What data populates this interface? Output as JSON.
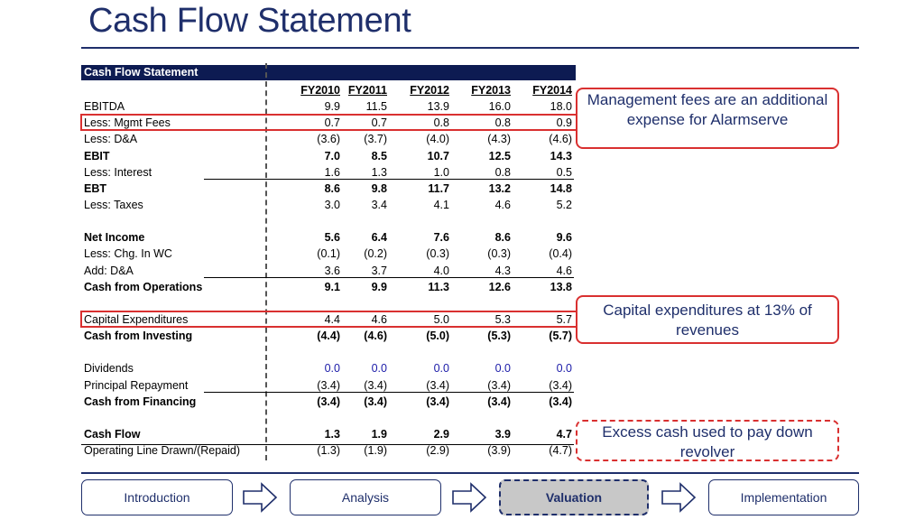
{
  "title": "Cash Flow Statement",
  "table": {
    "header": "Cash Flow Statement",
    "columns": [
      "FY2010",
      "FY2011",
      "FY2012",
      "FY2013",
      "FY2014"
    ],
    "rows": [
      {
        "label": "EBITDA",
        "values": [
          "9.9",
          "11.5",
          "13.9",
          "16.0",
          "18.0"
        ]
      },
      {
        "label": "Less: Mgmt Fees",
        "values": [
          "0.7",
          "0.7",
          "0.8",
          "0.8",
          "0.9"
        ]
      },
      {
        "label": "Less: D&A",
        "values": [
          "(3.6)",
          "(3.7)",
          "(4.0)",
          "(4.3)",
          "(4.6)"
        ]
      },
      {
        "label": "EBIT",
        "values": [
          "7.0",
          "8.5",
          "10.7",
          "12.5",
          "14.3"
        ]
      },
      {
        "label": "Less: Interest",
        "values": [
          "1.6",
          "1.3",
          "1.0",
          "0.8",
          "0.5"
        ]
      },
      {
        "label": "EBT",
        "values": [
          "8.6",
          "9.8",
          "11.7",
          "13.2",
          "14.8"
        ]
      },
      {
        "label": "Less: Taxes",
        "values": [
          "3.0",
          "3.4",
          "4.1",
          "4.6",
          "5.2"
        ]
      },
      {
        "label": "",
        "values": [
          "",
          "",
          "",
          "",
          ""
        ]
      },
      {
        "label": "Net Income",
        "values": [
          "5.6",
          "6.4",
          "7.6",
          "8.6",
          "9.6"
        ]
      },
      {
        "label": "Less: Chg. In WC",
        "values": [
          "(0.1)",
          "(0.2)",
          "(0.3)",
          "(0.3)",
          "(0.4)"
        ]
      },
      {
        "label": "Add: D&A",
        "values": [
          "3.6",
          "3.7",
          "4.0",
          "4.3",
          "4.6"
        ]
      },
      {
        "label": "Cash from Operations",
        "values": [
          "9.1",
          "9.9",
          "11.3",
          "12.6",
          "13.8"
        ]
      },
      {
        "label": "",
        "values": [
          "",
          "",
          "",
          "",
          ""
        ]
      },
      {
        "label": "Capital Expenditures",
        "values": [
          "4.4",
          "4.6",
          "5.0",
          "5.3",
          "5.7"
        ]
      },
      {
        "label": "Cash from Investing",
        "values": [
          "(4.4)",
          "(4.6)",
          "(5.0)",
          "(5.3)",
          "(5.7)"
        ]
      },
      {
        "label": "",
        "values": [
          "",
          "",
          "",
          "",
          ""
        ]
      },
      {
        "label": "Dividends",
        "values": [
          "0.0",
          "0.0",
          "0.0",
          "0.0",
          "0.0"
        ]
      },
      {
        "label": "Principal Repayment",
        "values": [
          "(3.4)",
          "(3.4)",
          "(3.4)",
          "(3.4)",
          "(3.4)"
        ]
      },
      {
        "label": "Cash from Financing",
        "values": [
          "(3.4)",
          "(3.4)",
          "(3.4)",
          "(3.4)",
          "(3.4)"
        ]
      },
      {
        "label": "",
        "values": [
          "",
          "",
          "",
          "",
          ""
        ]
      },
      {
        "label": "Cash Flow",
        "values": [
          "1.3",
          "1.9",
          "2.9",
          "3.9",
          "4.7"
        ]
      },
      {
        "label": "Operating Line Drawn/(Repaid)",
        "values": [
          "(1.3)",
          "(1.9)",
          "(2.9)",
          "(3.9)",
          "(4.7)"
        ]
      }
    ]
  },
  "callouts": {
    "mgmt_fees": "Management fees are an additional expense for Alarmserve",
    "capex": "Capital expenditures at 13% of revenues",
    "excess_cash": "Excess cash used to pay down revolver"
  },
  "nav": {
    "introduction": "Introduction",
    "analysis": "Analysis",
    "valuation": "Valuation",
    "implementation": "Implementation"
  },
  "colors": {
    "navy": "#1f2f6b",
    "header_bg": "#0d1b52",
    "highlight_red": "#d93030",
    "blue_value": "#1a1aa8"
  }
}
